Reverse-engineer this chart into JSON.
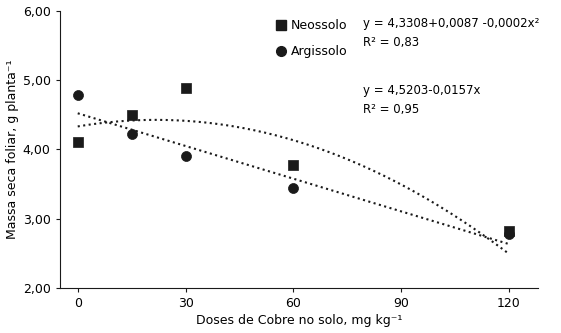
{
  "neossolo_x": [
    0,
    15,
    30,
    60,
    120
  ],
  "neossolo_y": [
    4.1,
    4.5,
    4.88,
    3.77,
    2.82
  ],
  "argissolo_x": [
    0,
    15,
    30,
    60,
    120
  ],
  "argissolo_y": [
    4.78,
    4.22,
    3.9,
    3.45,
    2.78
  ],
  "neossolo_eq_a": 4.3308,
  "neossolo_eq_b": 0.0087,
  "neossolo_eq_c": -0.0002,
  "argissolo_eq_a": 4.5203,
  "argissolo_eq_b": -0.0157,
  "xlabel": "Doses de Cobre no solo, mg kg⁻¹",
  "ylabel": "Massa seca foliar, g planta⁻¹",
  "xlim": [
    -5,
    128
  ],
  "ylim": [
    2.0,
    6.0
  ],
  "xticks": [
    0,
    30,
    60,
    90,
    120
  ],
  "yticks": [
    2.0,
    3.0,
    4.0,
    5.0,
    6.0
  ],
  "legend_neossolo": "Neossolo",
  "legend_argissolo": "Argissolo",
  "eq_neossolo_line1": "y = 4,3308+0,0087 -0,0002x²",
  "eq_neossolo_line2": "R² = 0,83",
  "eq_argissolo_line1": "y = 4,5203-0,0157x",
  "eq_argissolo_line2": "R² = 0,95",
  "color": "#1a1a1a",
  "marker_neossolo": "s",
  "marker_argissolo": "o",
  "background_color": "#ffffff"
}
